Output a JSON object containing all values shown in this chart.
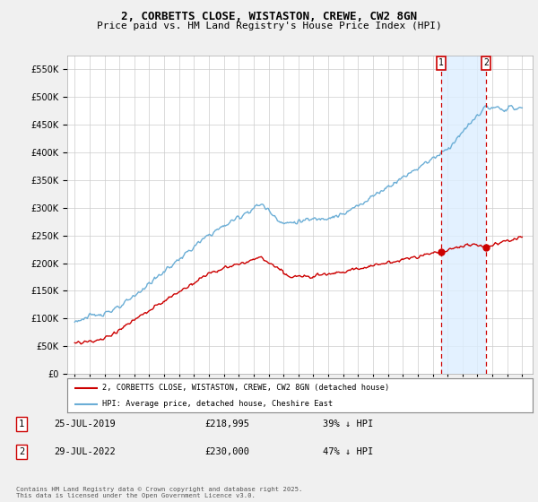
{
  "title_line1": "2, CORBETTS CLOSE, WISTASTON, CREWE, CW2 8GN",
  "title_line2": "Price paid vs. HM Land Registry's House Price Index (HPI)",
  "ylim": [
    0,
    575000
  ],
  "yticks": [
    0,
    50000,
    100000,
    150000,
    200000,
    250000,
    300000,
    350000,
    400000,
    450000,
    500000,
    550000
  ],
  "hpi_color": "#6baed6",
  "price_color": "#cc0000",
  "dashed_color": "#cc0000",
  "shade_color": "#ddeeff",
  "marker1_year": 2019.57,
  "marker1_value": 218995,
  "marker2_year": 2022.57,
  "marker2_value": 230000,
  "legend_label_red": "2, CORBETTS CLOSE, WISTASTON, CREWE, CW2 8GN (detached house)",
  "legend_label_blue": "HPI: Average price, detached house, Cheshire East",
  "annotation1_date": "25-JUL-2019",
  "annotation1_price": "£218,995",
  "annotation1_hpi": "39% ↓ HPI",
  "annotation2_date": "29-JUL-2022",
  "annotation2_price": "£230,000",
  "annotation2_hpi": "47% ↓ HPI",
  "footnote": "Contains HM Land Registry data © Crown copyright and database right 2025.\nThis data is licensed under the Open Government Licence v3.0.",
  "fig_bg": "#f0f0f0",
  "plot_bg": "#ffffff"
}
